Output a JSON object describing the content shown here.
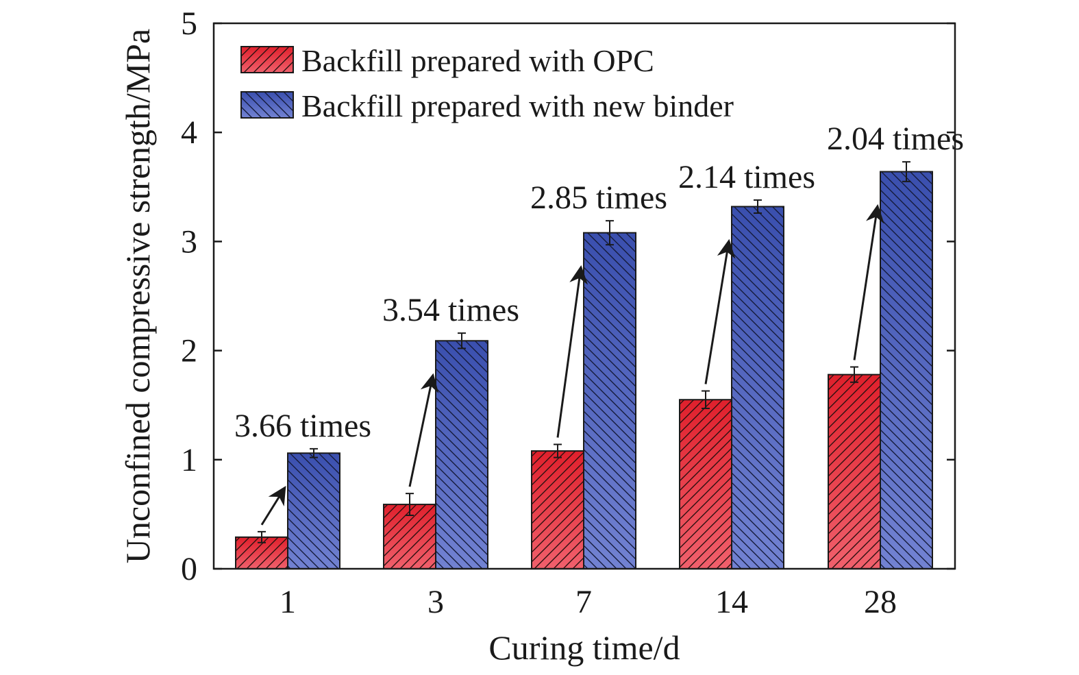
{
  "chart_data": {
    "type": "bar",
    "title": "",
    "xlabel": "Curing time/d",
    "ylabel": "Unconfined compressive strength/MPa",
    "categories": [
      "1",
      "3",
      "7",
      "14",
      "28"
    ],
    "ylim": [
      0,
      5
    ],
    "yticks": [
      "0",
      "1",
      "2",
      "3",
      "4",
      "5"
    ],
    "grid": false,
    "legend_position": "top-left",
    "series": [
      {
        "name": "Backfill prepared with OPC",
        "color": "#e0303c",
        "pattern": "hatch-forward",
        "values": [
          0.29,
          0.59,
          1.08,
          1.55,
          1.78
        ],
        "errors": [
          0.05,
          0.1,
          0.06,
          0.08,
          0.07
        ]
      },
      {
        "name": "Backfill prepared with new binder",
        "color": "#3f55b0",
        "pattern": "hatch-back",
        "values": [
          1.06,
          2.09,
          3.08,
          3.32,
          3.64
        ],
        "errors": [
          0.04,
          0.07,
          0.11,
          0.06,
          0.09
        ]
      }
    ],
    "annotations": [
      {
        "category": "1",
        "text": "3.66 times"
      },
      {
        "category": "3",
        "text": "3.54 times"
      },
      {
        "category": "7",
        "text": "2.85 times"
      },
      {
        "category": "14",
        "text": "2.14 times"
      },
      {
        "category": "28",
        "text": "2.04 times"
      }
    ]
  }
}
